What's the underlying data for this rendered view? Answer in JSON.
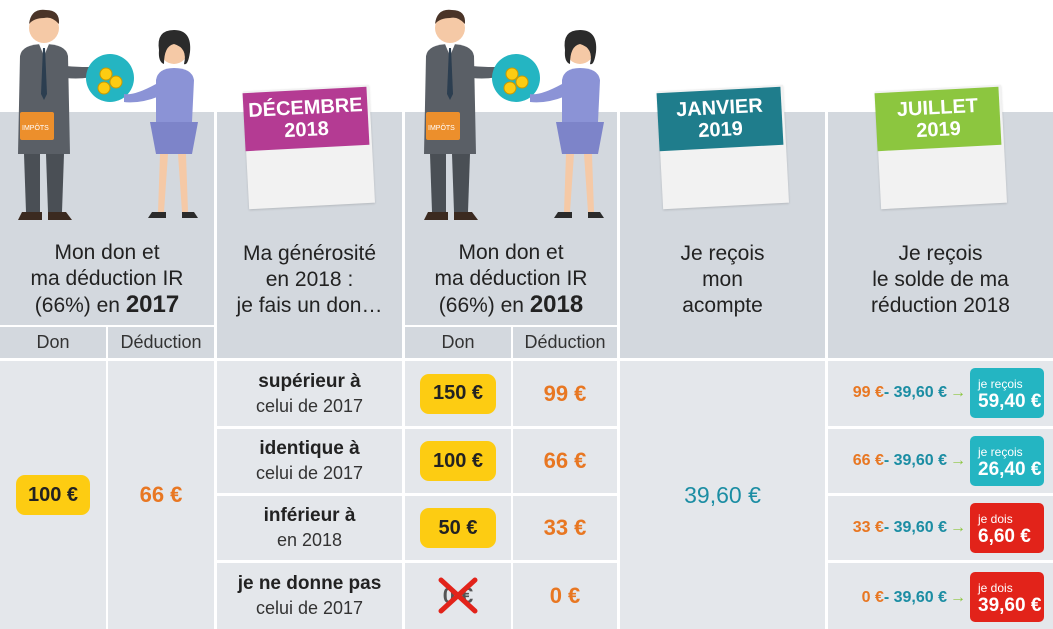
{
  "columns": {
    "don2017_header": {
      "line1": "Mon don et",
      "line2": "ma déduction IR",
      "line3_prefix": "(66%) en ",
      "year": "2017"
    },
    "generosite_header": {
      "line1": "Ma générosité",
      "line2": "en 2018 :",
      "line3": "je fais un don…"
    },
    "don2018_header": {
      "line1": "Mon don et",
      "line2": "ma déduction IR",
      "line3_prefix": "(66%) en ",
      "year": "2018"
    },
    "acompte_header": {
      "line1": "Je reçois",
      "line2": "mon",
      "line3": "acompte"
    },
    "solde_header": {
      "line1": "Je reçois",
      "line2": "le solde de ma",
      "line3": "réduction 2018"
    }
  },
  "calendars": [
    {
      "month": "DÉCEMBRE",
      "year": "2018",
      "color": "#b43b93"
    },
    {
      "month": "JANVIER",
      "year": "2019",
      "color": "#1f7d8c"
    },
    {
      "month": "JUILLET",
      "year": "2019",
      "color": "#8cc63f"
    }
  ],
  "subheaders": {
    "don": "Don",
    "deduction": "Déduction"
  },
  "don2017": {
    "don": "100 €",
    "deduction": "66 €"
  },
  "acompte_value": "39,60 €",
  "figure_badge": "IMPÔTS",
  "rows": [
    {
      "label_bold": "supérieur à",
      "label_normal": "celui de 2017",
      "don": "150 €",
      "deduction": "99 €",
      "calc_left": "99 €",
      "calc_right": "- 39,60 €",
      "box_small": "je reçois",
      "box_value": "59,40 €",
      "box_color": "#24b5c2"
    },
    {
      "label_bold": "identique à",
      "label_normal": "celui de 2017",
      "don": "100 €",
      "deduction": "66 €",
      "calc_left": "66 €",
      "calc_right": "- 39,60 €",
      "box_small": "je reçois",
      "box_value": "26,40 €",
      "box_color": "#24b5c2"
    },
    {
      "label_bold": "inférieur à",
      "label_normal": "en 2018",
      "don": "50 €",
      "deduction": "33 €",
      "calc_left": "33 €",
      "calc_right": "- 39,60 €",
      "box_small": "je dois",
      "box_value": "6,60 €",
      "box_color": "#e2231a"
    },
    {
      "label_bold": "je ne donne pas",
      "label_normal": "celui de 2017",
      "don": "0 €",
      "deduction": "0 €",
      "calc_left": "0 €",
      "calc_right": "- 39,60 €",
      "box_small": "je dois",
      "box_value": "39,60 €",
      "box_color": "#e2231a"
    }
  ]
}
